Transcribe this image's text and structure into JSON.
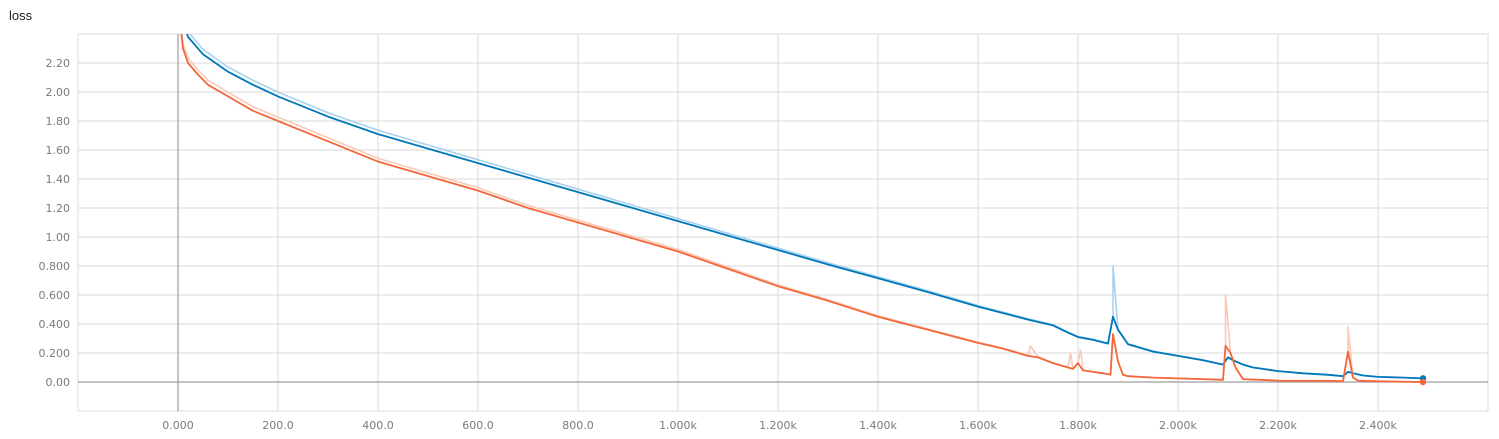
{
  "title": "loss",
  "chart_data": {
    "type": "line",
    "title": "loss",
    "xlabel": "",
    "ylabel": "",
    "xlim": [
      -200,
      2620
    ],
    "ylim": [
      -0.2,
      2.4
    ],
    "grid": true,
    "x_ticks": [
      0,
      200,
      400,
      600,
      800,
      1000,
      1200,
      1400,
      1600,
      1800,
      2000,
      2200,
      2400
    ],
    "x_tick_labels": [
      "0.000",
      "200.0",
      "400.0",
      "600.0",
      "800.0",
      "1.000k",
      "1.200k",
      "1.400k",
      "1.600k",
      "1.800k",
      "2.000k",
      "2.200k",
      "2.400k"
    ],
    "y_ticks": [
      0,
      0.2,
      0.4,
      0.6,
      0.8,
      1.0,
      1.2,
      1.4,
      1.6,
      1.8,
      2.0,
      2.2
    ],
    "y_tick_labels": [
      "0.00",
      "0.200",
      "0.400",
      "0.600",
      "0.800",
      "1.00",
      "1.20",
      "1.40",
      "1.60",
      "1.80",
      "2.00",
      "2.20"
    ],
    "series": [
      {
        "color": "#0077bb",
        "raw_color": "#a9d2ee",
        "x": [
          0,
          20,
          50,
          100,
          150,
          200,
          300,
          400,
          500,
          600,
          700,
          800,
          900,
          1000,
          1100,
          1200,
          1300,
          1400,
          1500,
          1600,
          1700,
          1750,
          1780,
          1800,
          1830,
          1860,
          1870,
          1880,
          1900,
          1950,
          2000,
          2050,
          2090,
          2100,
          2110,
          2130,
          2150,
          2200,
          2250,
          2300,
          2330,
          2340,
          2350,
          2370,
          2400,
          2450,
          2490
        ],
        "y": [
          2.6,
          2.38,
          2.26,
          2.14,
          2.05,
          1.97,
          1.83,
          1.71,
          1.61,
          1.51,
          1.41,
          1.31,
          1.21,
          1.11,
          1.01,
          0.91,
          0.81,
          0.715,
          0.62,
          0.52,
          0.43,
          0.39,
          0.34,
          0.31,
          0.29,
          0.265,
          0.45,
          0.36,
          0.26,
          0.21,
          0.18,
          0.15,
          0.12,
          0.17,
          0.15,
          0.12,
          0.1,
          0.075,
          0.06,
          0.05,
          0.04,
          0.07,
          0.06,
          0.045,
          0.035,
          0.03,
          0.025
        ],
        "raw_spikes": [
          [
            1870,
            0.8
          ]
        ]
      },
      {
        "color": "#f4673a",
        "raw_color": "#fbc9b6",
        "x": [
          0,
          10,
          20,
          40,
          60,
          100,
          150,
          200,
          300,
          400,
          500,
          600,
          700,
          800,
          900,
          1000,
          1100,
          1200,
          1300,
          1400,
          1500,
          1600,
          1650,
          1700,
          1720,
          1750,
          1780,
          1790,
          1800,
          1810,
          1820,
          1850,
          1865,
          1870,
          1880,
          1890,
          1900,
          1950,
          2000,
          2050,
          2090,
          2095,
          2105,
          2115,
          2130,
          2200,
          2300,
          2330,
          2340,
          2350,
          2360,
          2400,
          2490
        ],
        "y": [
          2.6,
          2.3,
          2.2,
          2.12,
          2.05,
          1.97,
          1.87,
          1.8,
          1.66,
          1.52,
          1.42,
          1.32,
          1.2,
          1.1,
          1.0,
          0.9,
          0.78,
          0.66,
          0.56,
          0.45,
          0.36,
          0.27,
          0.23,
          0.18,
          0.17,
          0.13,
          0.1,
          0.09,
          0.13,
          0.08,
          0.075,
          0.06,
          0.05,
          0.33,
          0.14,
          0.05,
          0.04,
          0.03,
          0.025,
          0.02,
          0.015,
          0.25,
          0.2,
          0.1,
          0.02,
          0.01,
          0.008,
          0.005,
          0.21,
          0.03,
          0.01,
          0.005,
          0.0
        ],
        "raw_spikes": [
          [
            1705,
            0.25
          ],
          [
            1785,
            0.2
          ],
          [
            1805,
            0.22
          ],
          [
            2095,
            0.6
          ],
          [
            2340,
            0.38
          ]
        ]
      }
    ]
  }
}
